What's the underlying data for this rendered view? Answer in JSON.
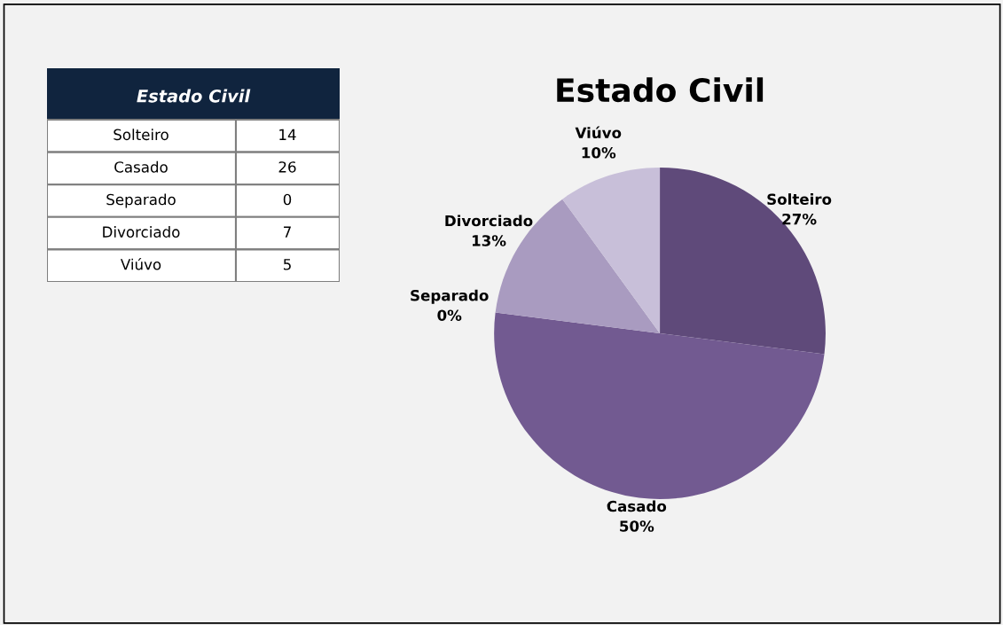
{
  "chart_data": [
    {
      "type": "other",
      "title": "Estado Civil",
      "categories": [
        "Solteiro",
        "Casado",
        "Separado",
        "Divorciado",
        "Viúvo"
      ],
      "values": [
        14,
        26,
        0,
        7,
        5
      ],
      "data_labels": true
    },
    {
      "type": "pie",
      "title": "Estado Civil",
      "categories": [
        "Solteiro",
        "Casado",
        "Separado",
        "Divorciado",
        "Viúvo"
      ],
      "values": [
        27,
        50,
        0,
        13,
        10
      ],
      "colors": [
        "#5f4a7a",
        "#725a91",
        "#8e7aab",
        "#a99bc0",
        "#c8bfd9"
      ],
      "value_labels": [
        "27%",
        "50%",
        "0%",
        "13%",
        "10%"
      ]
    }
  ]
}
